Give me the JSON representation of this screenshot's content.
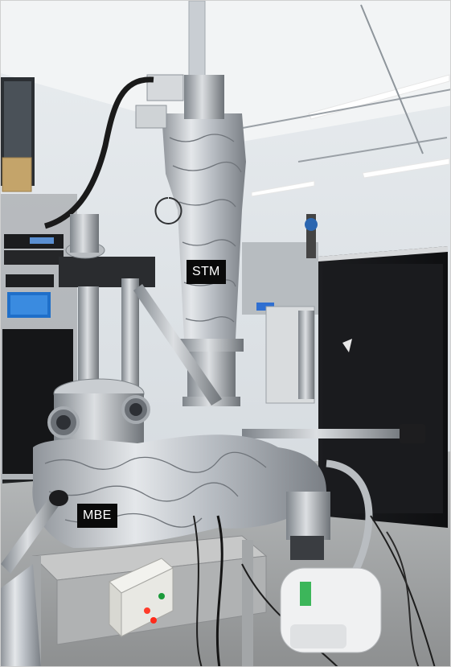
{
  "figure": {
    "labels": {
      "stm": "STM",
      "mbe": "MBE"
    },
    "indicator_lights": [
      "red",
      "red",
      "green"
    ]
  }
}
